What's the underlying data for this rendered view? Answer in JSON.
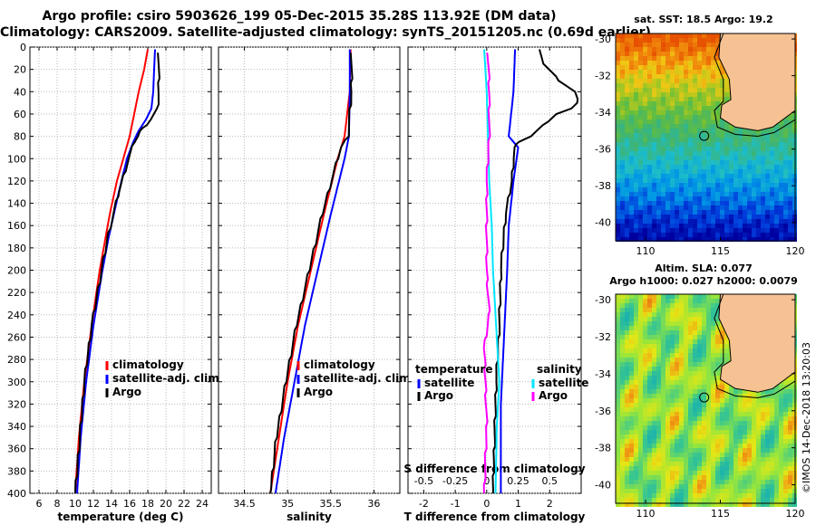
{
  "title": {
    "line1": "Argo profile: csiro 5903626_199 05-Dec-2015 35.28S 113.92E (DM data)",
    "line2": "Climatology: CARS2009. Satellite-adjusted climatology: synTS_20151205.nc (0.69d earlier)"
  },
  "colors": {
    "climatology": "#ff0000",
    "satellite": "#0000ff",
    "argo": "#000000",
    "satellite_salinity": "#00e5ff",
    "argo_salinity": "#ff00ff",
    "land": "#f6c193"
  },
  "chart_data": [
    {
      "type": "line",
      "id": "temperature",
      "xlabel": "temperature (deg C)",
      "ylabel": "depth",
      "xlim": [
        5,
        25
      ],
      "ylim": [
        400,
        0
      ],
      "xticks": [
        6,
        8,
        10,
        12,
        14,
        16,
        18,
        20,
        22,
        24
      ],
      "yticks": [
        0,
        20,
        40,
        60,
        80,
        100,
        120,
        140,
        160,
        180,
        200,
        220,
        240,
        260,
        280,
        300,
        320,
        340,
        360,
        380,
        400
      ],
      "legend": [
        "climatology",
        "satellite-adj. clim.",
        "Argo"
      ],
      "series": [
        {
          "name": "climatology",
          "color": "#ff0000",
          "depth": [
            2,
            20,
            40,
            60,
            80,
            100,
            120,
            150,
            200,
            250,
            300,
            350,
            400
          ],
          "values": [
            18.0,
            17.6,
            17.0,
            16.5,
            16.0,
            15.3,
            14.6,
            13.8,
            12.7,
            11.8,
            11.0,
            10.4,
            10.0
          ]
        },
        {
          "name": "satellite-adj. clim.",
          "color": "#0000ff",
          "depth": [
            2,
            20,
            40,
            55,
            65,
            75,
            85,
            100,
            130,
            170,
            200,
            250,
            300,
            350,
            400
          ],
          "values": [
            18.8,
            18.7,
            18.6,
            18.4,
            17.8,
            17.0,
            16.4,
            15.7,
            14.8,
            13.7,
            13.0,
            12.0,
            11.2,
            10.6,
            10.2
          ]
        },
        {
          "name": "Argo",
          "color": "#000000",
          "depth": [
            5,
            20,
            40,
            55,
            60,
            65,
            70,
            75,
            80,
            85,
            100,
            130,
            170,
            200,
            250,
            300,
            350,
            400
          ],
          "values": [
            19.2,
            19.2,
            19.2,
            19.1,
            18.7,
            18.3,
            17.8,
            17.2,
            16.9,
            16.5,
            15.9,
            14.8,
            13.6,
            12.9,
            11.8,
            11.0,
            10.5,
            10.0
          ]
        }
      ]
    },
    {
      "type": "line",
      "id": "salinity",
      "xlabel": "salinity",
      "xlim": [
        34.2,
        36.3
      ],
      "ylim": [
        400,
        0
      ],
      "xticks": [
        34.5,
        35,
        35.5,
        36
      ],
      "xticklabels": [
        "34.5",
        "35",
        "35.5",
        "36"
      ],
      "legend": [
        "climatology",
        "satellite-adj. clim.",
        "Argo"
      ],
      "series": [
        {
          "name": "climatology",
          "color": "#ff0000",
          "depth": [
            2,
            40,
            80,
            100,
            150,
            200,
            250,
            300,
            350,
            400
          ],
          "values": [
            35.73,
            35.72,
            35.66,
            35.58,
            35.42,
            35.27,
            35.12,
            35.0,
            34.9,
            34.8
          ]
        },
        {
          "name": "satellite-adj. clim.",
          "color": "#0000ff",
          "depth": [
            2,
            40,
            80,
            100,
            150,
            200,
            250,
            300,
            350,
            400
          ],
          "values": [
            35.72,
            35.72,
            35.71,
            35.66,
            35.5,
            35.35,
            35.2,
            35.08,
            34.96,
            34.86
          ]
        },
        {
          "name": "Argo",
          "color": "#000000",
          "depth": [
            5,
            40,
            80,
            90,
            100,
            150,
            200,
            250,
            300,
            350,
            400
          ],
          "values": [
            35.74,
            35.74,
            35.7,
            35.62,
            35.58,
            35.4,
            35.25,
            35.1,
            34.98,
            34.87,
            34.8
          ]
        }
      ]
    },
    {
      "type": "line",
      "id": "difference",
      "xlabel": "T difference from climatology",
      "top_axis_label": "S difference from climatology",
      "xlim": [
        -2.5,
        3.0
      ],
      "ylim": [
        400,
        0
      ],
      "xticks": [
        -2,
        -1,
        0,
        1,
        2
      ],
      "xticklabels": [
        "-2",
        "-1",
        "0",
        "1",
        "2"
      ],
      "s_xticks": [
        -0.5,
        -0.25,
        0,
        0.25,
        0.5
      ],
      "s_xticklabels": [
        "-0.5",
        "-0.25",
        "0",
        "0.25",
        "0.5"
      ],
      "legend_temperature_title": "temperature",
      "legend_salinity_title": "salinity",
      "legend_items": [
        "satellite",
        "Argo"
      ],
      "series": [
        {
          "name": "T satellite",
          "color": "#0000ff",
          "depth": [
            2,
            40,
            80,
            90,
            120,
            160,
            200,
            260,
            320,
            400
          ],
          "values": [
            0.9,
            0.85,
            0.7,
            1.0,
            0.85,
            0.7,
            0.65,
            0.55,
            0.45,
            0.45
          ]
        },
        {
          "name": "T Argo",
          "color": "#000000",
          "depth": [
            2,
            15,
            30,
            40,
            50,
            55,
            60,
            70,
            80,
            85,
            90,
            100,
            120,
            150,
            200,
            250,
            300,
            350,
            400
          ],
          "values": [
            1.7,
            1.8,
            2.3,
            2.8,
            2.9,
            2.7,
            2.2,
            1.8,
            1.4,
            1.0,
            0.9,
            0.85,
            0.8,
            0.6,
            0.45,
            0.4,
            0.3,
            0.25,
            0.2
          ]
        },
        {
          "name": "S satellite",
          "color": "#00e5ff",
          "depth": [
            2,
            40,
            80,
            120,
            160,
            200,
            260,
            300,
            340,
            400
          ],
          "values": [
            -0.02,
            0.0,
            0.01,
            0.02,
            0.04,
            0.05,
            0.08,
            0.1,
            0.08,
            0.07
          ]
        },
        {
          "name": "S Argo",
          "color": "#ff00ff",
          "depth": [
            5,
            40,
            80,
            120,
            160,
            200,
            240,
            270,
            300,
            340,
            400
          ],
          "values": [
            0.01,
            0.02,
            0.02,
            0.0,
            0.0,
            0.0,
            0.02,
            -0.02,
            -0.01,
            0.0,
            -0.02
          ]
        }
      ]
    },
    {
      "type": "heatmap",
      "id": "sst_map",
      "title": "sat. SST: 18.5 Argo: 19.2",
      "xlim": [
        108,
        120
      ],
      "ylim": [
        -41,
        -29.7
      ],
      "xticks": [
        110,
        115,
        120
      ],
      "yticks": [
        -30,
        -32,
        -34,
        -36,
        -38,
        -40
      ],
      "profile_location": {
        "lon": 113.92,
        "lat": -35.28
      }
    },
    {
      "type": "heatmap",
      "id": "sla_map",
      "title": "Altim. SLA: 0.077",
      "subtitle": "Argo h1000: 0.027 h2000: 0.0079",
      "xlim": [
        108,
        120
      ],
      "ylim": [
        -41,
        -29.7
      ],
      "xticks": [
        110,
        115,
        120
      ],
      "yticks": [
        -30,
        -32,
        -34,
        -36,
        -38,
        -40
      ],
      "profile_location": {
        "lon": 113.92,
        "lat": -35.28
      }
    }
  ],
  "credit": "©IMOS 14-Dec-2018 13:20:03"
}
